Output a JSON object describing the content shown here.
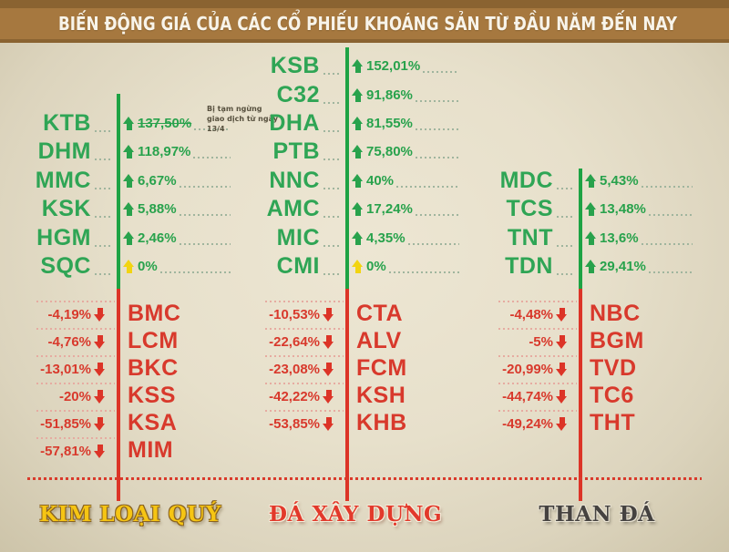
{
  "header": {
    "title": "BIẾN ĐỘNG GIÁ CỦA CÁC CỔ PHIẾU KHOÁNG SẢN TỪ ĐẦU NĂM ĐẾN NAY"
  },
  "colors": {
    "header_bar": "#a6783f",
    "header_dark": "#8a6331",
    "background": "#e7e0cb",
    "green": "#1ea344",
    "red": "#d8392c",
    "flat_yellow": "#f2d411",
    "label_yellow": "#f6c513",
    "label_red": "#e2392b",
    "label_dark": "#454240"
  },
  "chart_data": {
    "type": "bar",
    "title": "BIẾN ĐỘNG GIÁ CỦA CÁC CỔ PHIẾU KHOÁNG SẢN TỪ ĐẦU NĂM ĐẾN NAY",
    "unit": "%",
    "layout_hint": "three vertical diverging axes; gainers above (green), losers below (red)",
    "groups": [
      {
        "label": "KIM LOẠI QUÝ",
        "gainers": [
          {
            "ticker": "KTB",
            "change": "137,50%",
            "value": 137.5,
            "struck": true,
            "note": "Bị tạm ngừng giao dịch từ ngày 13/4"
          },
          {
            "ticker": "DHM",
            "change": "118,97%",
            "value": 118.97
          },
          {
            "ticker": "MMC",
            "change": "6,67%",
            "value": 6.67
          },
          {
            "ticker": "KSK",
            "change": "5,88%",
            "value": 5.88
          },
          {
            "ticker": "HGM",
            "change": "2,46%",
            "value": 2.46
          },
          {
            "ticker": "SQC",
            "change": "0%",
            "value": 0,
            "flat": true
          }
        ],
        "losers": [
          {
            "ticker": "BMC",
            "change": "-4,19%",
            "value": -4.19
          },
          {
            "ticker": "LCM",
            "change": "-4,76%",
            "value": -4.76
          },
          {
            "ticker": "BKC",
            "change": "-13,01%",
            "value": -13.01
          },
          {
            "ticker": "KSS",
            "change": "-20%",
            "value": -20
          },
          {
            "ticker": "KSA",
            "change": "-51,85%",
            "value": -51.85
          },
          {
            "ticker": "MIM",
            "change": "-57,81%",
            "value": -57.81
          }
        ]
      },
      {
        "label": "ĐÁ XÂY DỰNG",
        "gainers": [
          {
            "ticker": "KSB",
            "change": "152,01%",
            "value": 152.01
          },
          {
            "ticker": "C32",
            "change": "91,86%",
            "value": 91.86
          },
          {
            "ticker": "DHA",
            "change": "81,55%",
            "value": 81.55
          },
          {
            "ticker": "PTB",
            "change": "75,80%",
            "value": 75.8
          },
          {
            "ticker": "NNC",
            "change": "40%",
            "value": 40
          },
          {
            "ticker": "AMC",
            "change": "17,24%",
            "value": 17.24
          },
          {
            "ticker": "MIC",
            "change": "4,35%",
            "value": 4.35
          },
          {
            "ticker": "CMI",
            "change": "0%",
            "value": 0,
            "flat": true
          }
        ],
        "losers": [
          {
            "ticker": "CTA",
            "change": "-10,53%",
            "value": -10.53
          },
          {
            "ticker": "ALV",
            "change": "-22,64%",
            "value": -22.64
          },
          {
            "ticker": "FCM",
            "change": "-23,08%",
            "value": -23.08
          },
          {
            "ticker": "KSH",
            "change": "-42,22%",
            "value": -42.22
          },
          {
            "ticker": "KHB",
            "change": "-53,85%",
            "value": -53.85
          }
        ]
      },
      {
        "label": "THAN ĐÁ",
        "gainers": [
          {
            "ticker": "MDC",
            "change": "5,43%",
            "value": 5.43
          },
          {
            "ticker": "TCS",
            "change": "13,48%",
            "value": 13.48
          },
          {
            "ticker": "TNT",
            "change": "13,6%",
            "value": 13.6
          },
          {
            "ticker": "TDN",
            "change": "29,41%",
            "value": 29.41
          }
        ],
        "losers": [
          {
            "ticker": "NBC",
            "change": "-4,48%",
            "value": -4.48
          },
          {
            "ticker": "BGM",
            "change": "-5%",
            "value": -5
          },
          {
            "ticker": "TVD",
            "change": "-20,99%",
            "value": -20.99
          },
          {
            "ticker": "TC6",
            "change": "-44,74%",
            "value": -44.74
          },
          {
            "ticker": "THT",
            "change": "-49,24%",
            "value": -49.24
          }
        ]
      }
    ]
  }
}
